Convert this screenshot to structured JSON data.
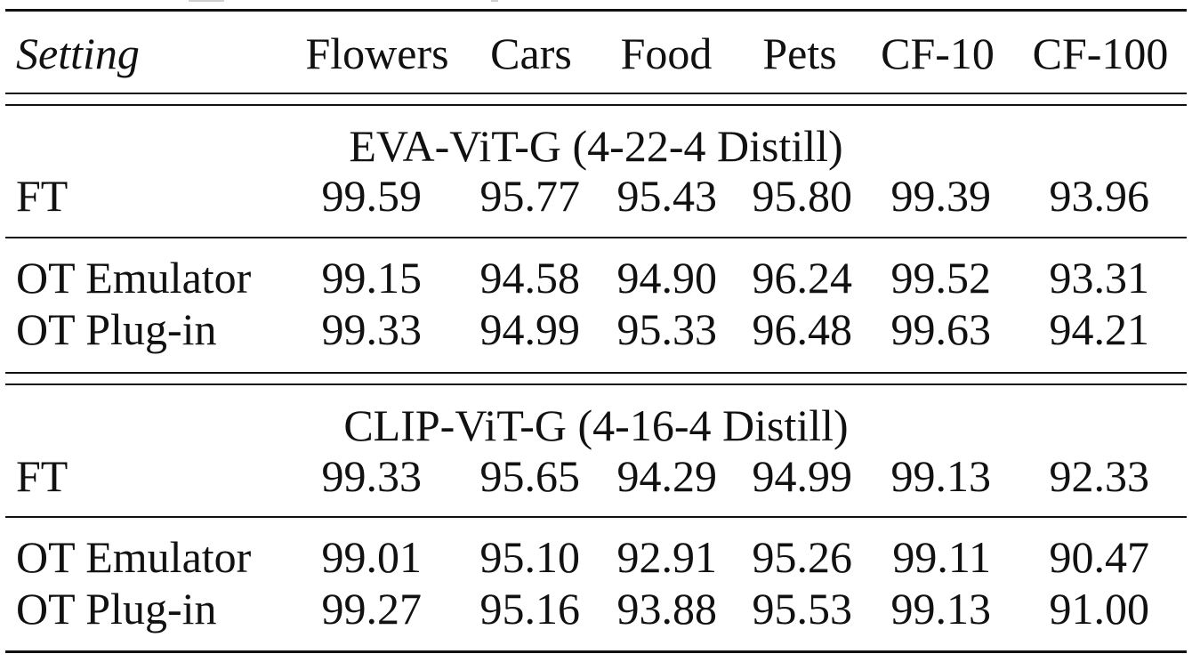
{
  "table": {
    "header": [
      "Setting",
      "Flowers",
      "Cars",
      "Food",
      "Pets",
      "CF-10",
      "CF-100"
    ],
    "sections": [
      {
        "title": "EVA-ViT-G (4-22-4 Distill)",
        "groups": [
          [
            {
              "setting": "FT",
              "values": [
                "99.59",
                "95.77",
                "95.43",
                "95.80",
                "99.39",
                "93.96"
              ]
            }
          ],
          [
            {
              "setting": "OT Emulator",
              "values": [
                "99.15",
                "94.58",
                "94.90",
                "96.24",
                "99.52",
                "93.31"
              ]
            },
            {
              "setting": "OT Plug-in",
              "values": [
                "99.33",
                "94.99",
                "95.33",
                "96.48",
                "99.63",
                "94.21"
              ]
            }
          ]
        ]
      },
      {
        "title": "CLIP-ViT-G (4-16-4 Distill)",
        "groups": [
          [
            {
              "setting": "FT",
              "values": [
                "99.33",
                "95.65",
                "94.29",
                "94.99",
                "99.13",
                "92.33"
              ]
            }
          ],
          [
            {
              "setting": "OT Emulator",
              "values": [
                "99.01",
                "95.10",
                "92.91",
                "95.26",
                "99.11",
                "90.47"
              ]
            },
            {
              "setting": "OT Plug-in",
              "values": [
                "99.27",
                "95.16",
                "93.88",
                "95.53",
                "99.13",
                "91.00"
              ]
            }
          ]
        ]
      }
    ]
  }
}
